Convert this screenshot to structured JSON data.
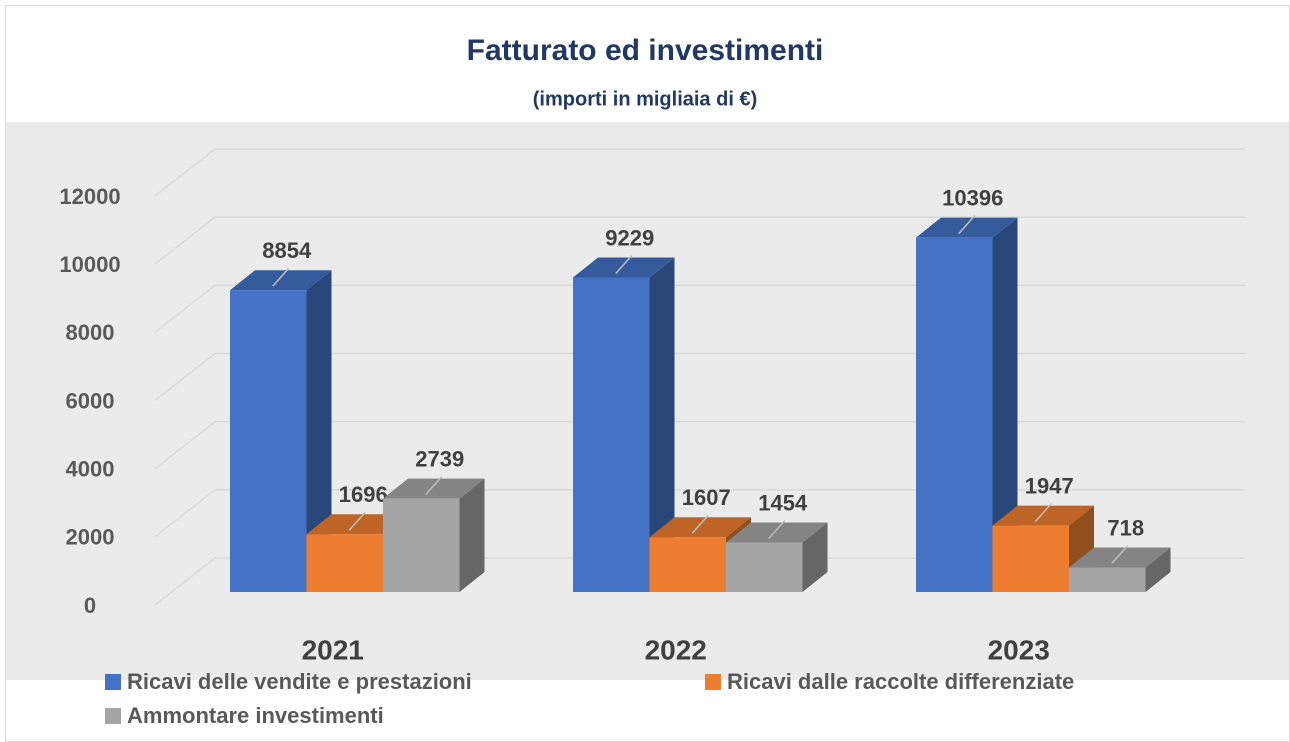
{
  "chart_data": {
    "type": "bar3d",
    "title": "Fatturato ed investimenti",
    "subtitle": "(importi in migliaia di €)",
    "categories": [
      "2021",
      "2022",
      "2023"
    ],
    "series": [
      {
        "name": "Ricavi delle vendite e prestazioni",
        "color": "#4472c4",
        "values": [
          8854,
          9229,
          10396
        ]
      },
      {
        "name": "Ricavi dalle raccolte differenziate",
        "color": "#ed7d31",
        "values": [
          1696,
          1607,
          1947
        ]
      },
      {
        "name": "Ammontare investimenti",
        "color": "#a5a5a5",
        "values": [
          2739,
          1454,
          718
        ]
      }
    ],
    "ylim": [
      0,
      12000
    ],
    "yticks": [
      0,
      2000,
      4000,
      6000,
      8000,
      10000,
      12000
    ],
    "grid": true,
    "legend": "bottom"
  }
}
